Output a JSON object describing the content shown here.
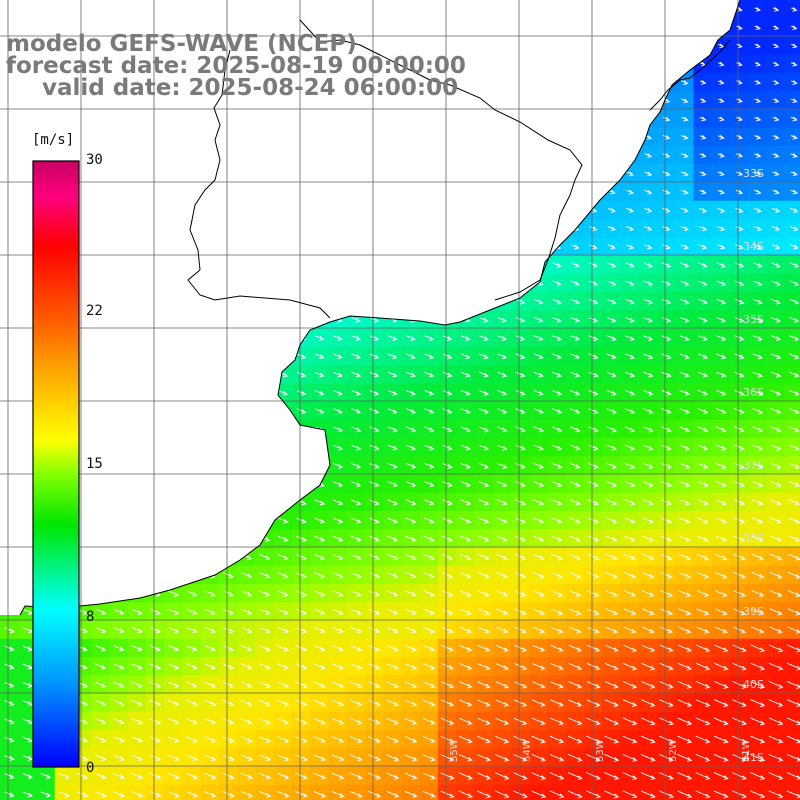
{
  "title": {
    "model": "modelo GEFS-WAVE (NCEP)",
    "forecast": "forecast date: 2025-08-19 00:00:00",
    "valid": "valid date: 2025-08-24 06:00:00"
  },
  "colorbar": {
    "unit": "[m/s]",
    "ticks": [
      "30",
      "22",
      "15",
      "8",
      "0"
    ],
    "tick_values": [
      30,
      22,
      15,
      8,
      0
    ],
    "colors": [
      "#0000ff",
      "#00c8ff",
      "#00ffff",
      "#00ff00",
      "#7dff00",
      "#ffff00",
      "#ffa000",
      "#ff5a00",
      "#ff0000",
      "#ff007d",
      "#c80064"
    ]
  },
  "map": {
    "lat_labels": [
      "33S",
      "34S",
      "35S",
      "36S",
      "37S",
      "38S",
      "39S",
      "40S",
      "41S"
    ],
    "lon_labels": [
      "55W",
      "54W",
      "53W",
      "52W",
      "51W"
    ],
    "land_color": "#ffffff",
    "grid_color": "#606060",
    "arrow_color": "#ffffff",
    "wind_direction": "from west-northwest toward east-southeast"
  }
}
